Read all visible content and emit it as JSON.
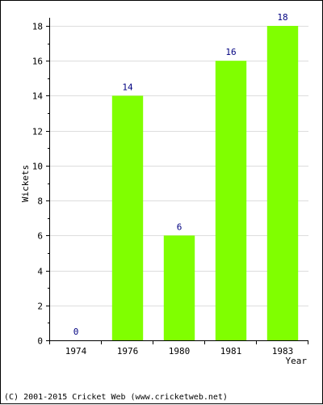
{
  "chart_data": {
    "type": "bar",
    "categories": [
      "1974",
      "1976",
      "1980",
      "1981",
      "1983"
    ],
    "values": [
      0,
      14,
      6,
      16,
      18
    ],
    "data_labels": [
      "0",
      "14",
      "6",
      "16",
      "18"
    ],
    "title": "",
    "xlabel": "Year",
    "ylabel": "Wickets",
    "ylim": [
      0,
      18
    ],
    "yticks": [
      0,
      2,
      4,
      6,
      8,
      10,
      12,
      14,
      16,
      18
    ],
    "grid": true,
    "bar_color": "#80ff00",
    "label_color": "#000080"
  },
  "footer": {
    "text": "(C) 2001-2015 Cricket Web (www.cricketweb.net)"
  }
}
